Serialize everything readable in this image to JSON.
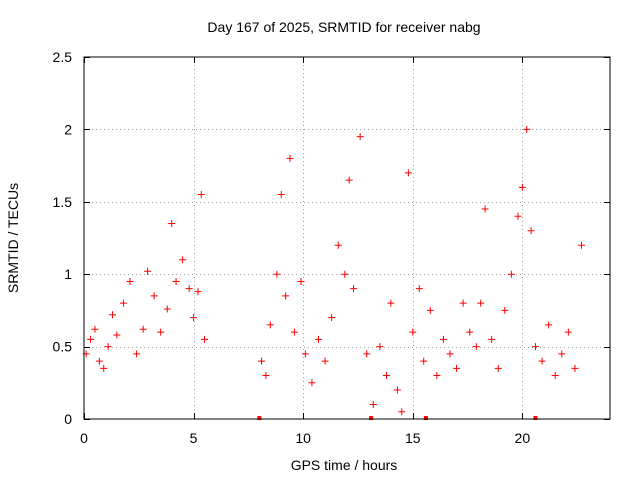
{
  "chart_data": {
    "type": "scatter",
    "title": "Day 167 of 2025, SRMTID for receiver nabg",
    "xlabel": "GPS time / hours",
    "ylabel": "SRMTID / TECUs",
    "xlim": [
      0,
      24
    ],
    "ylim": [
      0,
      2.5
    ],
    "xticks": [
      0,
      5,
      10,
      15,
      20
    ],
    "yticks": [
      0,
      0.5,
      1,
      1.5,
      2,
      2.5
    ],
    "xtick_labels": [
      "0",
      "5",
      "10",
      "15",
      "20"
    ],
    "ytick_labels": [
      "0",
      "0.5",
      "1",
      "1.5",
      "2",
      "2.5"
    ],
    "grid": true,
    "marker": "+",
    "color": "#ff0000",
    "gap_markers_x": [
      8.0,
      13.1,
      15.6,
      20.6
    ],
    "series": [
      {
        "name": "nabg",
        "points": [
          [
            0.1,
            0.45
          ],
          [
            0.3,
            0.55
          ],
          [
            0.5,
            0.62
          ],
          [
            0.7,
            0.4
          ],
          [
            0.9,
            0.35
          ],
          [
            1.1,
            0.5
          ],
          [
            1.3,
            0.72
          ],
          [
            1.5,
            0.58
          ],
          [
            1.8,
            0.8
          ],
          [
            2.1,
            0.95
          ],
          [
            2.4,
            0.45
          ],
          [
            2.7,
            0.62
          ],
          [
            2.9,
            1.02
          ],
          [
            3.2,
            0.85
          ],
          [
            3.5,
            0.6
          ],
          [
            3.8,
            0.76
          ],
          [
            4.0,
            1.35
          ],
          [
            4.2,
            0.95
          ],
          [
            4.5,
            1.1
          ],
          [
            4.8,
            0.9
          ],
          [
            5.0,
            0.7
          ],
          [
            5.2,
            0.88
          ],
          [
            5.35,
            1.55
          ],
          [
            5.5,
            0.55
          ],
          [
            8.1,
            0.4
          ],
          [
            8.3,
            0.3
          ],
          [
            8.5,
            0.65
          ],
          [
            8.8,
            1.0
          ],
          [
            9.0,
            1.55
          ],
          [
            9.2,
            0.85
          ],
          [
            9.4,
            1.8
          ],
          [
            9.6,
            0.6
          ],
          [
            9.9,
            0.95
          ],
          [
            10.1,
            0.45
          ],
          [
            10.4,
            0.25
          ],
          [
            10.7,
            0.55
          ],
          [
            11.0,
            0.4
          ],
          [
            11.3,
            0.7
          ],
          [
            11.6,
            1.2
          ],
          [
            11.9,
            1.0
          ],
          [
            12.1,
            1.65
          ],
          [
            12.3,
            0.9
          ],
          [
            12.6,
            1.95
          ],
          [
            12.9,
            0.45
          ],
          [
            13.2,
            0.1
          ],
          [
            13.5,
            0.5
          ],
          [
            13.8,
            0.3
          ],
          [
            14.0,
            0.8
          ],
          [
            14.3,
            0.2
          ],
          [
            14.5,
            0.05
          ],
          [
            14.8,
            1.7
          ],
          [
            15.0,
            0.6
          ],
          [
            15.3,
            0.9
          ],
          [
            15.5,
            0.4
          ],
          [
            15.8,
            0.75
          ],
          [
            16.1,
            0.3
          ],
          [
            16.4,
            0.55
          ],
          [
            16.7,
            0.45
          ],
          [
            17.0,
            0.35
          ],
          [
            17.3,
            0.8
          ],
          [
            17.6,
            0.6
          ],
          [
            17.9,
            0.5
          ],
          [
            18.1,
            0.8
          ],
          [
            18.3,
            1.45
          ],
          [
            18.6,
            0.55
          ],
          [
            18.9,
            0.35
          ],
          [
            19.2,
            0.75
          ],
          [
            19.5,
            1.0
          ],
          [
            19.8,
            1.4
          ],
          [
            20.0,
            1.6
          ],
          [
            20.2,
            2.0
          ],
          [
            20.4,
            1.3
          ],
          [
            20.6,
            0.5
          ],
          [
            20.9,
            0.4
          ],
          [
            21.2,
            0.65
          ],
          [
            21.5,
            0.3
          ],
          [
            21.8,
            0.45
          ],
          [
            22.1,
            0.6
          ],
          [
            22.4,
            0.35
          ],
          [
            22.7,
            1.2
          ]
        ]
      }
    ]
  }
}
